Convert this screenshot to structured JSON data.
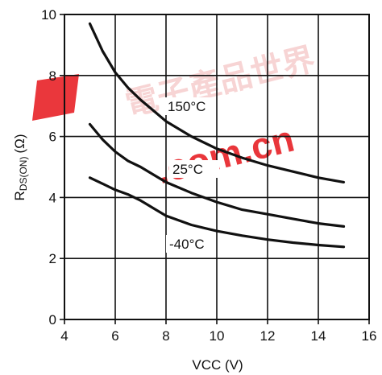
{
  "watermark": {
    "text": ".com.cn",
    "cjk_text": "電子產品世界",
    "color": "#e8262b"
  },
  "chart_data": {
    "type": "line",
    "xlabel": "VCC (V)",
    "ylabel_main": "R",
    "ylabel_sub": "DS(ON)",
    "ylabel_unit": "(Ω)",
    "xlim": [
      4,
      16
    ],
    "ylim": [
      0,
      10
    ],
    "x_ticks": [
      "4",
      "6",
      "8",
      "10",
      "12",
      "14",
      "16"
    ],
    "y_ticks": [
      "0",
      "2",
      "4",
      "6",
      "8",
      "10"
    ],
    "grid": true,
    "series": [
      {
        "name": "150°C",
        "x": [
          5,
          5.5,
          6,
          6.5,
          7,
          7.5,
          8,
          9,
          10,
          11,
          12,
          13,
          14,
          15
        ],
        "y": [
          9.7,
          8.8,
          8.1,
          7.6,
          7.2,
          6.85,
          6.5,
          6.0,
          5.6,
          5.3,
          5.05,
          4.85,
          4.65,
          4.5
        ]
      },
      {
        "name": "25°C",
        "x": [
          5,
          5.5,
          6,
          6.5,
          7,
          7.5,
          8,
          9,
          10,
          11,
          12,
          13,
          14,
          15
        ],
        "y": [
          6.4,
          5.9,
          5.5,
          5.2,
          5.0,
          4.75,
          4.5,
          4.15,
          3.85,
          3.6,
          3.45,
          3.3,
          3.15,
          3.05
        ]
      },
      {
        "name": "-40°C",
        "x": [
          5,
          5.5,
          6,
          6.5,
          7,
          7.5,
          8,
          9,
          10,
          11,
          12,
          13,
          14,
          15
        ],
        "y": [
          4.65,
          4.45,
          4.25,
          4.1,
          3.9,
          3.65,
          3.4,
          3.1,
          2.9,
          2.75,
          2.62,
          2.52,
          2.44,
          2.38
        ]
      }
    ]
  }
}
